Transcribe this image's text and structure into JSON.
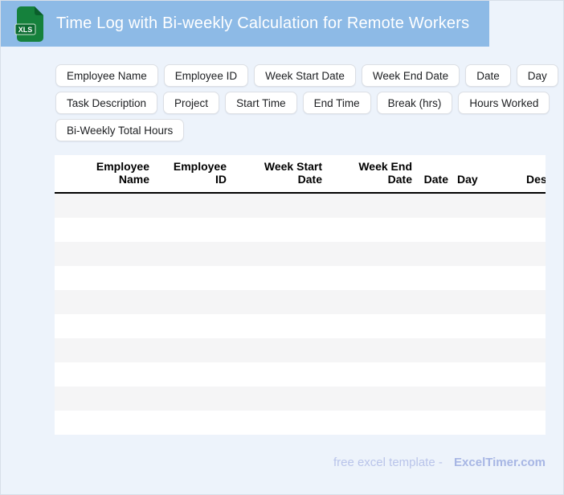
{
  "header": {
    "title": "Time Log with Bi-weekly Calculation for Remote Workers",
    "file_badge": "XLS"
  },
  "chips": [
    "Employee Name",
    "Employee ID",
    "Week Start Date",
    "Week End Date",
    "Date",
    "Day",
    "Task Description",
    "Project",
    "Start Time",
    "End Time",
    "Break (hrs)",
    "Hours Worked",
    "Bi-Weekly Total Hours"
  ],
  "table": {
    "columns": [
      {
        "label": "Employee\nName"
      },
      {
        "label": "Employee\nID"
      },
      {
        "label": "Week Start\nDate"
      },
      {
        "label": "Week End\nDate"
      },
      {
        "label": "Date"
      },
      {
        "label": "Day"
      },
      {
        "label": "Description"
      }
    ],
    "row_count": 10,
    "rows_are_empty": true
  },
  "footer": {
    "text": "free excel template -",
    "brand": "ExcelTimer.com"
  },
  "colors": {
    "header_bg": "#8dbae6",
    "page_bg": "#edf3fb",
    "row_alt": "#f5f5f6",
    "icon_green": "#15813c",
    "icon_green_dark": "#0a5f2b",
    "footer_text": "#b9c4ea",
    "footer_brand": "#a7b6e4"
  }
}
